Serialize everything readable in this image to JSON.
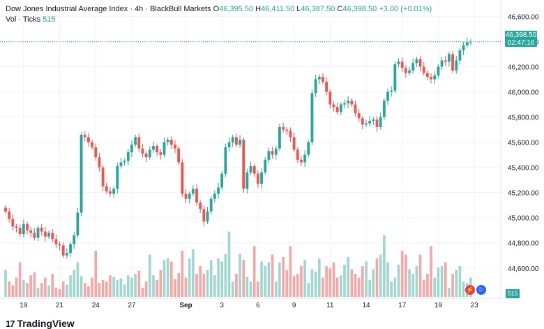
{
  "legend": {
    "title": "Dow Jones Industrial Average Index · 4h · BlackBull Markets",
    "o_label": "O",
    "o_value": "46,395.50",
    "h_label": "H",
    "h_value": "46,411.50",
    "l_label": "L",
    "l_value": "46,387.50",
    "c_label": "C",
    "c_value": "46,398.50",
    "change": "+3.00 (+0.01%)",
    "vol_label": "Vol · Ticks",
    "vol_value": "515"
  },
  "last_price": {
    "price": "46,398.50",
    "countdown": "02:47:16"
  },
  "volume_badge": "515",
  "logo": {
    "mark": "17",
    "text": "TradingView"
  },
  "colors": {
    "up": "#26a69a",
    "down": "#ef5350",
    "up_vol": "#9fd6cf",
    "down_vol": "#f5a6a5",
    "grid": "#f0f3fa",
    "axis_text": "#131722"
  },
  "icons": {
    "event_icon": "bolt-icon",
    "country_icon": "us-flag-icon"
  },
  "chart_data": {
    "type": "candlestick",
    "title": "Dow Jones Industrial Average Index",
    "interval": "4h",
    "ylim": [
      44360,
      46730
    ],
    "y_ticks": [
      44600,
      44800,
      45000,
      45200,
      45400,
      45600,
      45800,
      46000,
      46200,
      46400,
      46600
    ],
    "y_tick_labels": [
      "44,600.00",
      "44,800.00",
      "45,000.00",
      "45,200.00",
      "45,400.00",
      "45,600.00",
      "45,800.00",
      "46,000.00",
      "46,200.00",
      "46,400.00",
      "46,600.00"
    ],
    "x_tick_labels": [
      {
        "label": "19",
        "bar": 5
      },
      {
        "label": "21",
        "bar": 15
      },
      {
        "label": "24",
        "bar": 25
      },
      {
        "label": "27",
        "bar": 35
      },
      {
        "label": "Sep",
        "bar": 50
      },
      {
        "label": "3",
        "bar": 60
      },
      {
        "label": "6",
        "bar": 70
      },
      {
        "label": "9",
        "bar": 80
      },
      {
        "label": "11",
        "bar": 90
      },
      {
        "label": "14",
        "bar": 100
      },
      {
        "label": "17",
        "bar": 110
      },
      {
        "label": "19",
        "bar": 120
      },
      {
        "label": "23",
        "bar": 130
      }
    ],
    "closes": [
      45050,
      44990,
      44930,
      44920,
      44870,
      44950,
      44900,
      44880,
      44840,
      44920,
      44890,
      44850,
      44880,
      44830,
      44790,
      44780,
      44700,
      44720,
      44790,
      44860,
      45040,
      45660,
      45640,
      45600,
      45560,
      45480,
      45400,
      45250,
      45210,
      45190,
      45230,
      45410,
      45440,
      45450,
      45520,
      45580,
      45640,
      45550,
      45510,
      45480,
      45540,
      45570,
      45520,
      45500,
      45600,
      45620,
      45580,
      45550,
      45440,
      45190,
      45150,
      45190,
      45230,
      45120,
      45070,
      44970,
      45050,
      45150,
      45190,
      45240,
      45350,
      45560,
      45600,
      45640,
      45580,
      45620,
      45230,
      45360,
      45410,
      45350,
      45270,
      45360,
      45460,
      45530,
      45500,
      45550,
      45720,
      45700,
      45690,
      45640,
      45540,
      45460,
      45440,
      45500,
      45600,
      45990,
      46100,
      46120,
      46080,
      46000,
      45900,
      45880,
      45840,
      45900,
      45910,
      45930,
      45900,
      45830,
      45790,
      45740,
      45750,
      45770,
      45780,
      45720,
      45800,
      45930,
      46000,
      46010,
      46220,
      46240,
      46190,
      46150,
      46170,
      46230,
      46260,
      46200,
      46150,
      46120,
      46100,
      46130,
      46200,
      46250,
      46240,
      46300,
      46170,
      46250,
      46330,
      46370,
      46395,
      46398.5
    ],
    "volumes": [
      35,
      20,
      15,
      25,
      45,
      22,
      18,
      28,
      32,
      12,
      18,
      25,
      15,
      30,
      12,
      10,
      20,
      16,
      28,
      35,
      45,
      27,
      18,
      14,
      25,
      60,
      18,
      22,
      20,
      28,
      26,
      22,
      24,
      16,
      28,
      25,
      30,
      34,
      12,
      20,
      55,
      28,
      22,
      35,
      48,
      50,
      46,
      23,
      31,
      60,
      25,
      50,
      62,
      30,
      40,
      30,
      35,
      48,
      28,
      50,
      46,
      56,
      85,
      20,
      30,
      56,
      48,
      26,
      20,
      66,
      20,
      46,
      40,
      45,
      55,
      20,
      45,
      52,
      35,
      66,
      27,
      30,
      40,
      48,
      18,
      36,
      33,
      50,
      25,
      40,
      37,
      45,
      25,
      28,
      42,
      52,
      36,
      30,
      25,
      40,
      46,
      22,
      36,
      50,
      55,
      80,
      45,
      20,
      25,
      42,
      60,
      55,
      36,
      30,
      40,
      55,
      22,
      30,
      66,
      25,
      38,
      40,
      45,
      12,
      30,
      35,
      40,
      20,
      18,
      25
    ]
  }
}
